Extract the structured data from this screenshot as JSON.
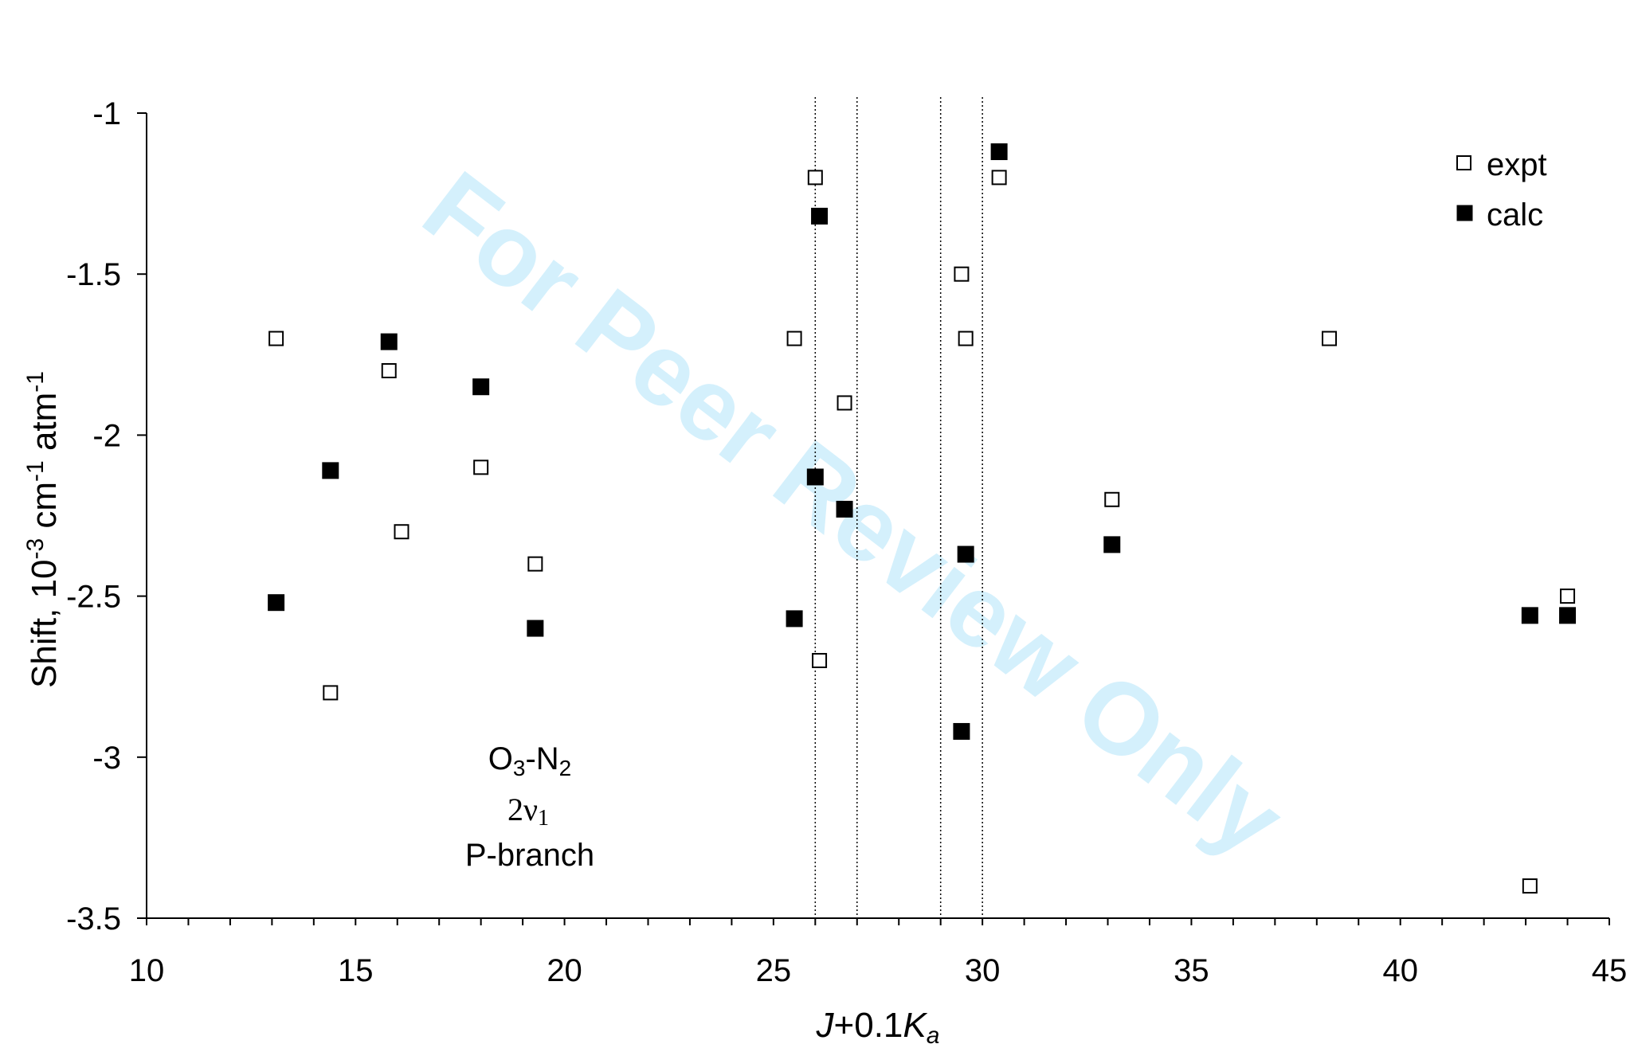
{
  "chart_data": {
    "type": "scatter",
    "xlabel": "J+0.1Ka",
    "xlabel_parts": {
      "j": "J",
      "mid": "+0.1",
      "k": "K",
      "sub": "a"
    },
    "ylabel_parts": {
      "a": "Shift, 10",
      "b": "-3",
      "c": " cm",
      "d": "-1",
      "e": " atm",
      "f": "-1"
    },
    "xlim": [
      10,
      45
    ],
    "ylim": [
      -3.5,
      -1
    ],
    "xticks": [
      10,
      15,
      20,
      25,
      30,
      35,
      40,
      45
    ],
    "yticks": [
      -1,
      -1.5,
      -2,
      -2.5,
      -3,
      -3.5
    ],
    "x_tick_labels": [
      "10",
      "15",
      "20",
      "25",
      "30",
      "35",
      "40",
      "45"
    ],
    "y_tick_labels": [
      "-1",
      "-1.5",
      "-2",
      "-2.5",
      "-3",
      "-3.5"
    ],
    "grid": false,
    "vertical_reference_lines": [
      26,
      27,
      29,
      30
    ],
    "legend_position": "top-right",
    "series": [
      {
        "name": "expt",
        "marker": "open-square",
        "color": "#000000",
        "points": [
          [
            13.1,
            -1.7
          ],
          [
            14.4,
            -2.8
          ],
          [
            15.8,
            -1.8
          ],
          [
            16.1,
            -2.3
          ],
          [
            18.0,
            -2.1
          ],
          [
            19.3,
            -2.4
          ],
          [
            25.5,
            -1.7
          ],
          [
            26.0,
            -1.2
          ],
          [
            26.1,
            -2.7
          ],
          [
            26.7,
            -1.9
          ],
          [
            29.5,
            -1.5
          ],
          [
            29.6,
            -1.7
          ],
          [
            30.4,
            -1.2
          ],
          [
            33.1,
            -2.2
          ],
          [
            38.3,
            -1.7
          ],
          [
            43.1,
            -3.4
          ],
          [
            44.0,
            -2.5
          ]
        ]
      },
      {
        "name": "calc",
        "marker": "filled-square",
        "color": "#000000",
        "points": [
          [
            13.1,
            -2.52
          ],
          [
            14.4,
            -2.11
          ],
          [
            15.8,
            -1.71
          ],
          [
            18.0,
            -1.85
          ],
          [
            19.3,
            -2.6
          ],
          [
            25.5,
            -2.57
          ],
          [
            26.0,
            -2.13
          ],
          [
            26.1,
            -1.32
          ],
          [
            26.7,
            -2.23
          ],
          [
            29.5,
            -2.92
          ],
          [
            29.6,
            -2.37
          ],
          [
            30.4,
            -1.12
          ],
          [
            33.1,
            -2.34
          ],
          [
            43.1,
            -2.56
          ],
          [
            44.0,
            -2.56
          ]
        ]
      }
    ],
    "annotations": {
      "system": {
        "base": "O",
        "sub1": "3",
        "mid": "-N",
        "sub2": "2"
      },
      "band": {
        "base": "2ν",
        "sub": "1"
      },
      "branch": "P-branch"
    }
  },
  "watermark": "For Peer Review Only"
}
